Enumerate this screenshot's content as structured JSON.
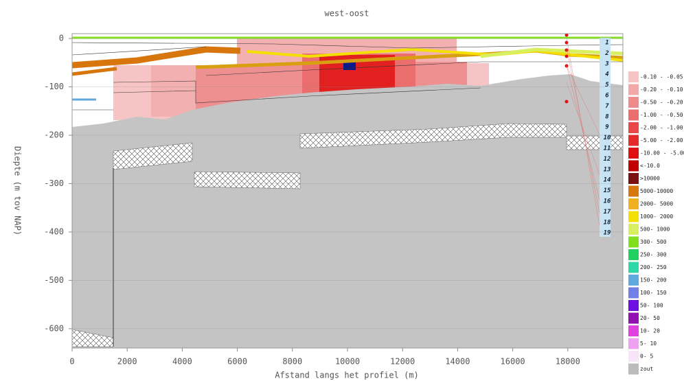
{
  "chart_data": {
    "type": "cross-section",
    "title": "west-oost",
    "x_label": "Afstand langs het profiel (m)",
    "y_label": "Diepte (m tov NAP)",
    "xlim": [
      0,
      20000
    ],
    "ylim": [
      -640,
      10
    ],
    "xticks": [
      0,
      2000,
      4000,
      6000,
      8000,
      10000,
      12000,
      14000,
      16000,
      18000
    ],
    "yticks": [
      0,
      -100,
      -200,
      -300,
      -400,
      -500,
      -600
    ],
    "grid": true,
    "layer_labels": [
      "1",
      "2",
      "3",
      "4",
      "5",
      "6",
      "7",
      "8",
      "9",
      "10",
      "11",
      "12",
      "13",
      "14",
      "15",
      "16",
      "17",
      "18",
      "19"
    ],
    "legend": [
      {
        "label": "-0.10 - -0.05",
        "color": "#f6c4c4"
      },
      {
        "label": "-0.20 - -0.10",
        "color": "#f2a8a8"
      },
      {
        "label": "-0.50 - -0.20",
        "color": "#ee8c8c"
      },
      {
        "label": "-1.00 - -0.50",
        "color": "#ea6e6e"
      },
      {
        "label": "-2.00 - -1.00",
        "color": "#e84848"
      },
      {
        "label": "-5.00 - -2.00",
        "color": "#e62a2a"
      },
      {
        "label": "-10.00 - -5.00",
        "color": "#e01010"
      },
      {
        "label": "<-10.0",
        "color": "#c00000"
      },
      {
        "label": ">10000",
        "color": "#7a1010"
      },
      {
        "label": "5000-10000",
        "color": "#d8760e"
      },
      {
        "label": "2000- 5000",
        "color": "#f0b020"
      },
      {
        "label": "1000- 2000",
        "color": "#f4e000"
      },
      {
        "label": "500- 1000",
        "color": "#d8f060"
      },
      {
        "label": "300- 500",
        "color": "#80e020"
      },
      {
        "label": "250- 300",
        "color": "#20d060"
      },
      {
        "label": "200- 250",
        "color": "#30d8a8"
      },
      {
        "label": "150- 200",
        "color": "#60a8e0"
      },
      {
        "label": "100- 150",
        "color": "#7080e8"
      },
      {
        "label": "50- 100",
        "color": "#7010e0"
      },
      {
        "label": "20- 50",
        "color": "#9010b0"
      },
      {
        "label": "10- 20",
        "color": "#e040e0"
      },
      {
        "label": "5- 10",
        "color": "#f0a0f0"
      },
      {
        "label": "0- 5",
        "color": "#f8e4f8"
      },
      {
        "label": "zout",
        "color": "#bcbcbc"
      }
    ]
  }
}
